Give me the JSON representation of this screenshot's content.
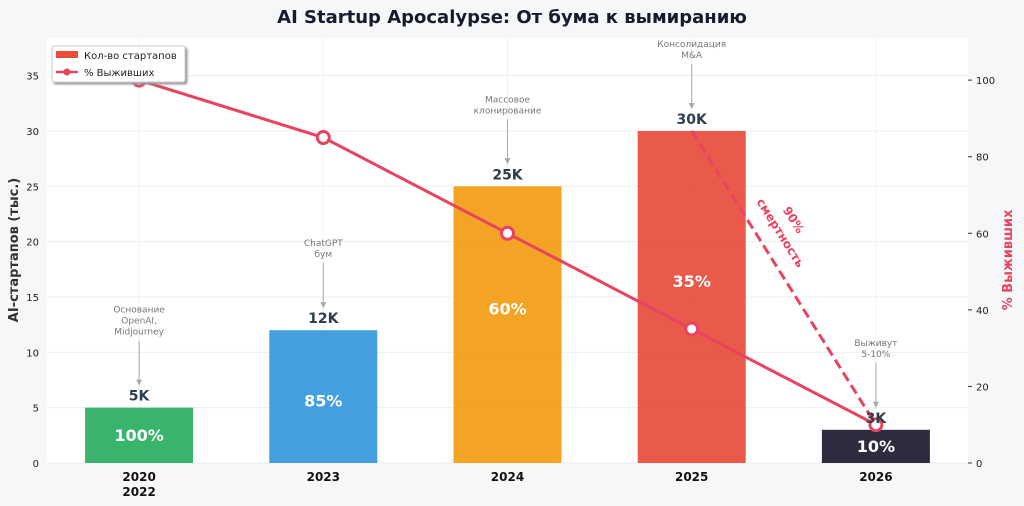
{
  "chart_data": {
    "type": "bar",
    "title": "AI Startup Apocalypse: От бума к вымиранию",
    "categories": [
      "2020\n2022",
      "2023",
      "2024",
      "2025",
      "2026"
    ],
    "series": [
      {
        "name": "Кол-во стартапов",
        "axis": "left",
        "type": "bar",
        "values": [
          5,
          12,
          25,
          30,
          3
        ],
        "labels": [
          "5K",
          "12K",
          "25K",
          "30K",
          "3K"
        ],
        "colors": [
          "#27ae60",
          "#3498db",
          "#f39c12",
          "#e74c3c",
          "#1a1a2e"
        ]
      },
      {
        "name": "% Выживших",
        "axis": "right",
        "type": "line",
        "values": [
          100,
          85,
          60,
          35,
          10
        ],
        "labels": [
          "100%",
          "85%",
          "60%",
          "35%",
          "10%"
        ],
        "color": "#e8435f"
      }
    ],
    "ylabel": "AI-стартапов (тыс.)",
    "ylabel_right": "% Выживших",
    "ylim": [
      0,
      38.4
    ],
    "ylim_right": [
      0,
      111
    ],
    "yticks": [
      0,
      5,
      10,
      15,
      20,
      25,
      30,
      35
    ],
    "yticks_right": [
      0,
      20,
      40,
      60,
      80,
      100
    ],
    "legend_placement": "top-left",
    "grid": true,
    "annotations": [
      {
        "category": 0,
        "text": [
          "Основание",
          "OpenAI,",
          "Midjourney"
        ]
      },
      {
        "category": 1,
        "text": [
          "ChatGPT",
          "бум"
        ]
      },
      {
        "category": 2,
        "text": [
          "Массовое",
          "клонирование"
        ]
      },
      {
        "category": 3,
        "text": [
          "Консолидация",
          "M&A"
        ]
      },
      {
        "category": 4,
        "text": [
          "Выживут",
          "5-10%"
        ]
      }
    ],
    "mortality_label": [
      "90%",
      "смертность"
    ]
  }
}
